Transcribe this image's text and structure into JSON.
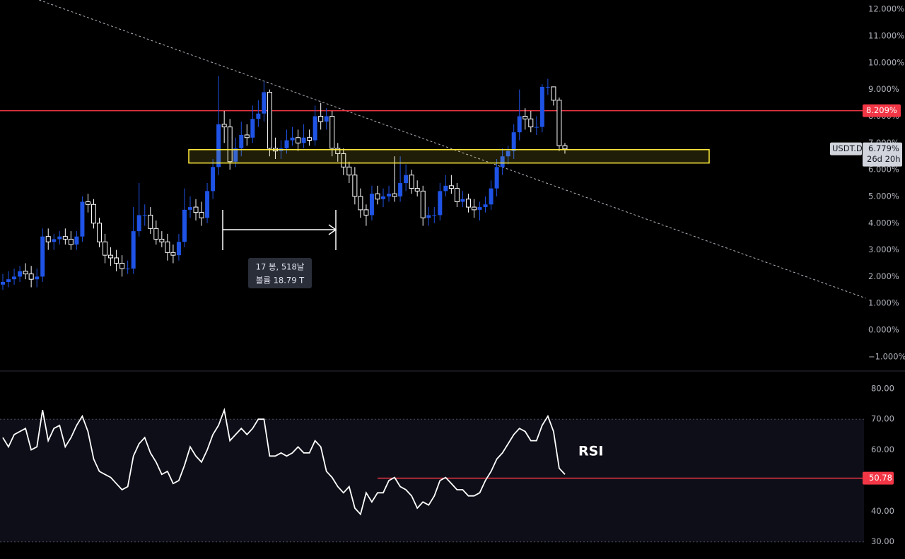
{
  "chart_data": [
    {
      "type": "candlestick",
      "symbol": "USDT.D",
      "open": [
        1.7,
        1.8,
        1.9,
        2.0,
        2.2,
        2.1,
        1.9,
        2.0,
        3.5,
        3.3,
        3.4,
        3.5,
        3.4,
        3.2,
        3.5,
        4.8,
        4.7,
        4.0,
        3.3,
        2.8,
        2.7,
        2.5,
        2.3,
        2.3,
        3.7,
        4.3,
        4.3,
        3.8,
        3.4,
        3.3,
        2.9,
        2.8,
        3.3,
        4.5,
        4.6,
        4.4,
        4.2,
        5.2,
        6.1,
        7.7,
        7.6,
        6.3,
        6.8,
        7.3,
        7.2,
        7.9,
        8.1,
        8.9,
        6.8,
        6.7,
        6.8,
        7.1,
        7.2,
        7.0,
        7.2,
        7.1,
        8.0,
        7.8,
        8.0,
        6.8,
        6.6,
        6.1,
        5.8,
        5.0,
        4.5,
        4.3,
        5.1,
        4.9,
        5.0,
        5.1,
        5.0,
        5.5,
        5.8,
        5.3,
        5.2,
        4.2,
        4.3,
        4.3,
        5.2,
        5.4,
        5.3,
        4.8,
        4.9,
        4.6,
        4.5,
        4.6,
        4.7,
        5.3,
        6.1,
        6.5,
        6.7,
        7.4,
        8.0,
        7.9,
        7.6,
        7.6,
        9.1,
        9.1,
        8.6,
        6.9
      ],
      "high": [
        2.1,
        2.2,
        2.3,
        2.4,
        2.5,
        2.4,
        2.3,
        3.8,
        3.8,
        3.6,
        3.7,
        3.8,
        3.7,
        3.7,
        5.0,
        5.1,
        4.9,
        4.2,
        3.6,
        3.1,
        3.0,
        2.8,
        2.6,
        4.6,
        5.5,
        4.7,
        4.6,
        4.1,
        3.7,
        3.6,
        3.2,
        3.6,
        5.3,
        5.0,
        4.9,
        4.8,
        5.5,
        6.4,
        9.5,
        8.2,
        7.9,
        7.2,
        7.8,
        7.7,
        8.4,
        8.6,
        9.3,
        9.0,
        7.2,
        7.1,
        7.5,
        7.6,
        7.5,
        7.7,
        7.5,
        8.4,
        8.5,
        8.3,
        8.2,
        7.0,
        6.8,
        6.3,
        6.1,
        5.3,
        4.7,
        5.4,
        5.4,
        5.3,
        5.4,
        6.5,
        6.5,
        6.2,
        6.0,
        5.6,
        5.4,
        4.6,
        4.6,
        5.5,
        5.8,
        5.8,
        5.5,
        5.2,
        5.1,
        4.9,
        4.8,
        5.0,
        5.6,
        6.4,
        6.8,
        6.9,
        7.7,
        9.0,
        8.3,
        8.2,
        8.0,
        9.2,
        9.4,
        9.1,
        8.7,
        7.0
      ],
      "low": [
        1.5,
        1.6,
        1.7,
        1.8,
        1.9,
        1.6,
        1.6,
        1.8,
        3.0,
        3.0,
        3.2,
        3.2,
        3.0,
        3.0,
        3.3,
        4.4,
        3.8,
        3.1,
        2.5,
        2.4,
        2.2,
        2.0,
        2.1,
        2.1,
        3.5,
        3.9,
        3.6,
        3.2,
        3.1,
        2.6,
        2.5,
        2.6,
        3.1,
        4.2,
        4.1,
        3.9,
        4.0,
        4.9,
        5.8,
        7.0,
        6.0,
        6.1,
        6.5,
        6.9,
        7.0,
        7.6,
        7.8,
        6.5,
        6.4,
        6.4,
        6.6,
        6.9,
        6.7,
        6.8,
        6.9,
        6.9,
        7.5,
        7.5,
        6.5,
        6.3,
        5.8,
        5.5,
        4.7,
        4.2,
        3.9,
        4.1,
        4.7,
        4.6,
        4.8,
        4.8,
        4.8,
        5.2,
        5.1,
        5.0,
        3.9,
        3.9,
        4.0,
        4.1,
        5.0,
        5.1,
        4.6,
        4.6,
        4.4,
        4.2,
        4.1,
        4.4,
        4.5,
        5.0,
        5.8,
        6.2,
        6.4,
        7.1,
        7.5,
        7.4,
        7.3,
        7.4,
        8.8,
        8.4,
        6.7,
        6.6
      ],
      "close": [
        1.8,
        1.9,
        2.0,
        2.2,
        2.1,
        1.9,
        2.0,
        3.5,
        3.3,
        3.4,
        3.5,
        3.4,
        3.2,
        3.5,
        4.8,
        4.7,
        4.0,
        3.3,
        2.8,
        2.7,
        2.5,
        2.3,
        2.3,
        3.7,
        4.3,
        4.3,
        3.8,
        3.4,
        3.3,
        2.9,
        2.8,
        3.3,
        4.5,
        4.6,
        4.4,
        4.2,
        5.2,
        6.1,
        7.7,
        7.6,
        6.3,
        6.8,
        7.3,
        7.2,
        7.9,
        8.1,
        8.9,
        6.8,
        6.7,
        6.8,
        7.1,
        7.2,
        7.0,
        7.2,
        7.1,
        8.0,
        7.8,
        8.0,
        6.8,
        6.6,
        6.1,
        5.8,
        5.0,
        4.5,
        4.3,
        5.1,
        4.9,
        5.0,
        5.1,
        5.0,
        5.5,
        5.8,
        5.3,
        5.2,
        4.2,
        4.3,
        4.3,
        5.2,
        5.4,
        5.3,
        4.8,
        4.9,
        4.6,
        4.5,
        4.6,
        4.7,
        5.3,
        6.1,
        6.5,
        6.7,
        7.4,
        8.0,
        7.9,
        7.6,
        7.6,
        9.1,
        9.1,
        8.6,
        6.9,
        6.779
      ],
      "up_color": "#1e53e5",
      "down_color": "#ffffff",
      "ylim": [
        -1.48,
        12.35
      ],
      "yticks": [
        {
          "value": 12,
          "label": "12.000%"
        },
        {
          "value": 11,
          "label": "11.000%"
        },
        {
          "value": 10,
          "label": "10.000%"
        },
        {
          "value": 9,
          "label": "9.000%"
        },
        {
          "value": 8,
          "label": "8.000%"
        },
        {
          "value": 7,
          "label": "7.000%"
        },
        {
          "value": 6,
          "label": "6.000%"
        },
        {
          "value": 5,
          "label": "5.000%"
        },
        {
          "value": 4,
          "label": "4.000%"
        },
        {
          "value": 3,
          "label": "3.000%"
        },
        {
          "value": 2,
          "label": "2.000%"
        },
        {
          "value": 1,
          "label": "1.000%"
        },
        {
          "value": 0,
          "label": "0.000%"
        },
        {
          "value": -1,
          "label": "−1.000%"
        }
      ],
      "last_value": {
        "value": 6.779,
        "label": "6.779%"
      },
      "countdown": "26d 20h",
      "hline": {
        "value": 8.209,
        "label": "8.209%",
        "color": "#f23645"
      },
      "zone": {
        "low": 6.25,
        "high": 6.75,
        "color": "#ffeb3b"
      },
      "trendline": {
        "from": [
          6.4,
          12.35
        ],
        "to": [
          152,
          1.19
        ]
      },
      "measure": [
        "17 봉, 518날",
        "볼륨 18.79 T"
      ]
    },
    {
      "type": "line",
      "title": "RSI",
      "color": "#ffffff",
      "values": [
        64,
        61,
        65,
        66,
        67,
        60,
        61,
        73,
        63,
        67,
        68,
        61,
        64,
        68,
        71,
        66,
        57,
        53,
        52,
        51,
        49,
        47,
        48,
        58,
        62,
        64,
        59,
        56,
        52,
        53,
        49,
        50,
        55,
        61,
        58,
        56,
        60,
        65,
        68,
        73,
        63,
        65,
        67,
        65,
        67,
        70,
        70,
        58,
        58,
        59,
        58,
        59,
        61,
        59,
        59,
        63,
        61,
        53,
        51,
        48,
        46,
        48,
        41,
        39,
        46,
        43,
        46,
        46,
        50,
        51,
        48,
        47,
        45,
        41,
        43,
        42,
        45,
        50,
        51,
        49,
        47,
        47,
        45,
        45,
        46,
        50,
        53,
        57,
        59,
        62,
        65,
        67,
        66,
        63,
        63,
        68,
        71,
        66,
        54,
        52
      ],
      "ylim": [
        24.4,
        85.5
      ],
      "yticks": [
        {
          "value": 80,
          "label": "80.00"
        },
        {
          "value": 70,
          "label": "70.00"
        },
        {
          "value": 60,
          "label": "60.00"
        },
        {
          "value": 50,
          "label": "50.00"
        },
        {
          "value": 40,
          "label": "40.00"
        },
        {
          "value": 30,
          "label": "30.00"
        }
      ],
      "band": [
        30,
        70
      ],
      "hline": {
        "value": 50.78,
        "label": "50.78",
        "color": "#f23645",
        "from": 66
      }
    }
  ]
}
